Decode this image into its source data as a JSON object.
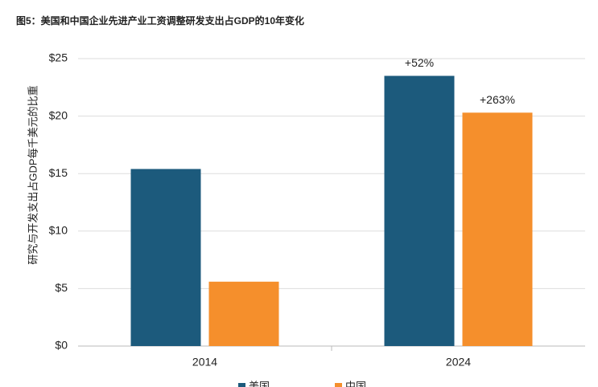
{
  "chart_data": {
    "type": "bar",
    "title": "图5：美国和中国企业先进产业工资调整研发支出占GDP的10年变化",
    "y_label": "研究与开发支出占GDP每千美元的比重",
    "categories": [
      "2014",
      "2024"
    ],
    "series": [
      {
        "name": "美国",
        "color": "#1c5a7c",
        "values": [
          15.4,
          23.5
        ]
      },
      {
        "name": "中国",
        "color": "#f58f2c",
        "values": [
          5.6,
          20.3
        ]
      }
    ],
    "annotations": [
      "+52%",
      "+263%"
    ],
    "ylim": [
      0,
      25
    ],
    "yticks": [
      {
        "value": 0,
        "label": "$0"
      },
      {
        "value": 5,
        "label": "$5"
      },
      {
        "value": 10,
        "label": "$10"
      },
      {
        "value": 15,
        "label": "$15"
      },
      {
        "value": 20,
        "label": "$20"
      },
      {
        "value": 25,
        "label": "$25"
      }
    ],
    "grid": true
  }
}
